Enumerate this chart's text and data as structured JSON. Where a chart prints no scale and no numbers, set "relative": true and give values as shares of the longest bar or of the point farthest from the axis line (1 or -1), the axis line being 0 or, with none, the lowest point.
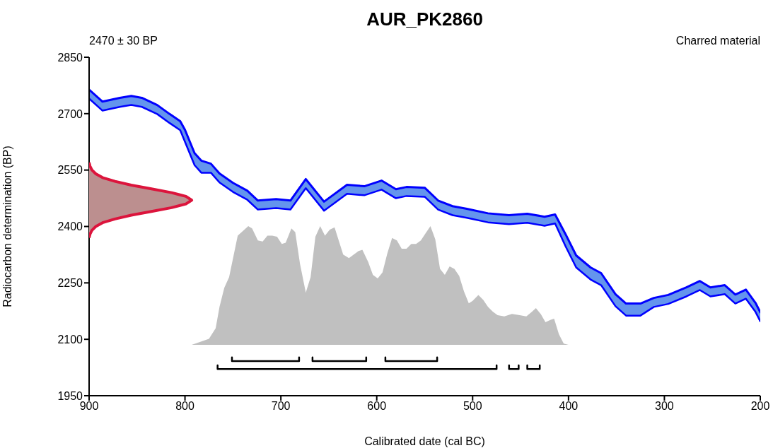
{
  "chart_data": [
    {
      "type": "line",
      "title": "AUR_PK2860",
      "annotations": [
        "2470 ± 30 BP",
        "Charred material"
      ],
      "xlabel": "Calibrated date (cal BC)",
      "ylabel": "Radiocarbon determination (BP)",
      "xlim": [
        900,
        200
      ],
      "xticks": [
        900,
        800,
        700,
        600,
        500,
        400,
        300,
        200
      ],
      "ylim": [
        1950,
        2850
      ],
      "yticks": [
        1950,
        2100,
        2250,
        2400,
        2550,
        2700,
        2850
      ],
      "grid": false,
      "legend": false,
      "series": [
        {
          "color": "#0000ff",
          "x": [
            900,
            886,
            868,
            856,
            845,
            829,
            816,
            805,
            800,
            790,
            783,
            773,
            764,
            750,
            735,
            724,
            705,
            690,
            674,
            655,
            631,
            613,
            595,
            580,
            569,
            550,
            536,
            521,
            506,
            484,
            462,
            443,
            425,
            414,
            403,
            392,
            377,
            366,
            351,
            340,
            325,
            311,
            296,
            277,
            263,
            252,
            237,
            226,
            215,
            205,
            200
          ],
          "values": [
            2764,
            2732,
            2742,
            2747,
            2742,
            2723,
            2699,
            2680,
            2657,
            2595,
            2575,
            2567,
            2541,
            2516,
            2495,
            2469,
            2473,
            2469,
            2526,
            2466,
            2511,
            2507,
            2522,
            2499,
            2505,
            2503,
            2469,
            2454,
            2447,
            2435,
            2430,
            2434,
            2426,
            2432,
            2379,
            2323,
            2291,
            2276,
            2220,
            2195,
            2195,
            2210,
            2218,
            2238,
            2255,
            2238,
            2244,
            2219,
            2232,
            2197,
            2172
          ],
          "lower": [
            2740,
            2708,
            2718,
            2723,
            2718,
            2699,
            2675,
            2656,
            2625,
            2563,
            2543,
            2543,
            2517,
            2492,
            2471,
            2445,
            2449,
            2445,
            2502,
            2442,
            2487,
            2483,
            2498,
            2475,
            2481,
            2479,
            2445,
            2430,
            2423,
            2411,
            2406,
            2410,
            2402,
            2408,
            2347,
            2291,
            2259,
            2244,
            2188,
            2163,
            2163,
            2186,
            2194,
            2214,
            2231,
            2214,
            2220,
            2195,
            2208,
            2173,
            2148
          ],
          "upper": [
            2764,
            2732,
            2742,
            2747,
            2742,
            2723,
            2699,
            2680,
            2657,
            2595,
            2575,
            2567,
            2541,
            2516,
            2495,
            2469,
            2473,
            2469,
            2526,
            2466,
            2511,
            2507,
            2522,
            2499,
            2505,
            2503,
            2469,
            2454,
            2447,
            2435,
            2430,
            2434,
            2426,
            2432,
            2379,
            2323,
            2291,
            2276,
            2220,
            2195,
            2195,
            2210,
            2218,
            2238,
            2255,
            2238,
            2244,
            2219,
            2232,
            2197,
            2172
          ]
        },
        {
          "color": "#0000ff",
          "x": [
            900,
            886,
            868,
            856,
            845,
            829,
            816,
            805,
            800,
            790,
            783,
            773,
            764,
            750,
            735,
            724,
            705,
            690,
            674,
            655,
            631,
            613,
            595,
            580,
            569,
            550,
            536,
            521,
            506,
            484,
            462,
            443,
            425,
            414,
            403,
            392,
            377,
            366,
            351,
            340,
            325,
            311,
            296,
            277,
            263,
            252,
            237,
            226,
            215,
            205,
            200
          ],
          "values": [
            2740,
            2708,
            2718,
            2723,
            2718,
            2699,
            2675,
            2656,
            2625,
            2563,
            2543,
            2543,
            2517,
            2492,
            2471,
            2445,
            2449,
            2445,
            2502,
            2442,
            2487,
            2483,
            2498,
            2475,
            2481,
            2479,
            2445,
            2430,
            2423,
            2411,
            2406,
            2410,
            2402,
            2408,
            2347,
            2291,
            2259,
            2244,
            2188,
            2163,
            2163,
            2186,
            2194,
            2214,
            2231,
            2214,
            2220,
            2195,
            2208,
            2173,
            2148
          ]
        },
        {
          "type": "area",
          "color": "#dc143c",
          "x": [
            900,
            899,
            897,
            893,
            886,
            873,
            856,
            835,
            814,
            799,
            793,
            799,
            814,
            835,
            856,
            873,
            886,
            893,
            897,
            899,
            900
          ],
          "values": [
            2370,
            2380,
            2390,
            2400,
            2410,
            2420,
            2430,
            2440,
            2450,
            2460,
            2470,
            2480,
            2490,
            2500,
            2510,
            2520,
            2530,
            2540,
            2550,
            2560,
            2570
          ]
        },
        {
          "color": "#000000",
          "x": [
            751,
            751,
            681,
            681
          ],
          "values": [
            2052,
            2042,
            2042,
            2052
          ]
        },
        {
          "color": "#000000",
          "x": [
            667,
            667,
            611,
            611
          ],
          "values": [
            2052,
            2042,
            2042,
            2052
          ]
        },
        {
          "color": "#000000",
          "x": [
            591,
            591,
            537,
            537
          ],
          "values": [
            2052,
            2042,
            2042,
            2052
          ]
        },
        {
          "color": "#000000",
          "x": [
            766,
            766,
            475,
            475
          ],
          "values": [
            2031,
            2021,
            2021,
            2031
          ]
        },
        {
          "color": "#000000",
          "x": [
            462,
            462,
            452,
            452
          ],
          "values": [
            2031,
            2021,
            2021,
            2031
          ]
        },
        {
          "color": "#000000",
          "x": [
            443,
            443,
            430,
            430
          ],
          "values": [
            2031,
            2021,
            2021,
            2031
          ]
        }
      ]
    },
    {
      "type": "area",
      "relative": true,
      "xlim": [
        900,
        200
      ],
      "tick_labels": false,
      "series": [
        {
          "color": "#c0c0c0",
          "x": [
            793,
            775,
            768,
            764,
            759,
            754,
            745,
            734,
            730,
            724,
            719,
            714,
            709,
            704,
            699,
            695,
            689,
            685,
            680,
            674,
            669,
            664,
            659,
            654,
            649,
            644,
            635,
            629,
            619,
            615,
            609,
            604,
            599,
            594,
            589,
            584,
            579,
            574,
            569,
            564,
            559,
            554,
            549,
            544,
            539,
            534,
            529,
            524,
            519,
            514,
            509,
            504,
            500,
            494,
            489,
            484,
            479,
            474,
            467,
            459,
            451,
            444,
            438,
            434,
            429,
            424,
            419,
            415,
            410,
            405,
            400
          ],
          "values": [
            0,
            0.05,
            0.14,
            0.32,
            0.48,
            0.57,
            0.92,
            1.0,
            0.98,
            0.88,
            0.87,
            0.92,
            0.92,
            0.91,
            0.85,
            0.86,
            0.98,
            0.95,
            0.68,
            0.44,
            0.57,
            0.91,
            1.0,
            0.92,
            0.97,
            0.99,
            0.76,
            0.73,
            0.79,
            0.8,
            0.7,
            0.59,
            0.56,
            0.61,
            0.77,
            0.9,
            0.88,
            0.81,
            0.81,
            0.85,
            0.85,
            0.88,
            0.94,
            1.0,
            0.89,
            0.64,
            0.59,
            0.66,
            0.64,
            0.58,
            0.45,
            0.35,
            0.37,
            0.42,
            0.38,
            0.32,
            0.28,
            0.25,
            0.24,
            0.26,
            0.25,
            0.24,
            0.28,
            0.31,
            0.26,
            0.19,
            0.21,
            0.22,
            0.09,
            0.01,
            0
          ]
        }
      ]
    }
  ]
}
